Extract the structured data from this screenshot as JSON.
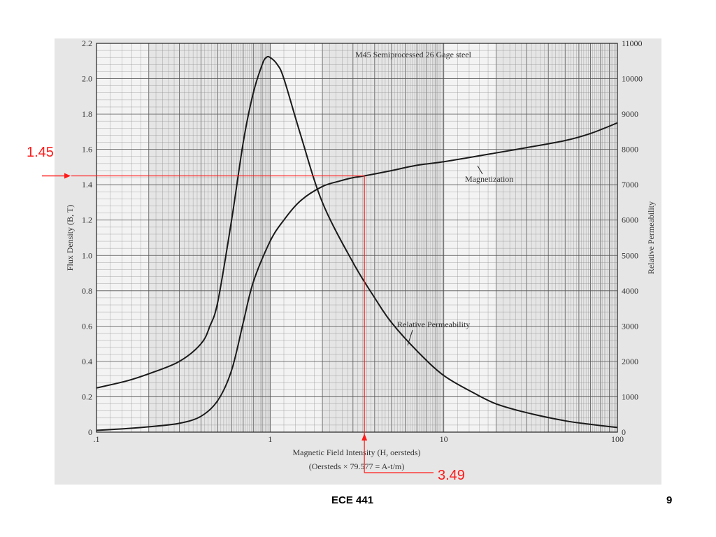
{
  "chart_data": {
    "type": "line",
    "title": "M45 Semiprocessed 26 Gage steel",
    "xlabel": "Magnetic Field Intensity (H, oersteds)",
    "xlabel2": "(Oersteds × 79.577 = A-t/m)",
    "ylabel": "Flux Density (B, T)",
    "y2label": "Relative Permeability",
    "xscale": "log",
    "xlim": [
      0.1,
      100
    ],
    "ylim": [
      0,
      2.2
    ],
    "y2lim": [
      0,
      11000
    ],
    "grid": true,
    "x_ticks": [
      ".1",
      "1",
      "10",
      "100"
    ],
    "y_ticks": [
      "0",
      "0.2",
      "0.4",
      "0.6",
      "0.8",
      "1.0",
      "1.2",
      "1.4",
      "1.6",
      "1.8",
      "2.0",
      "2.2"
    ],
    "y2_ticks": [
      "0",
      "1000",
      "2000",
      "3000",
      "4000",
      "5000",
      "6000",
      "7000",
      "8000",
      "9000",
      "10000",
      "11000"
    ],
    "series": [
      {
        "name": "Magnetization",
        "axis": "left",
        "x": [
          0.1,
          0.15,
          0.2,
          0.3,
          0.4,
          0.5,
          0.6,
          0.7,
          0.8,
          1.0,
          1.2,
          1.5,
          2.0,
          2.5,
          3.0,
          3.49,
          5,
          7,
          10,
          20,
          30,
          50,
          70,
          100
        ],
        "y": [
          0.01,
          0.02,
          0.03,
          0.05,
          0.09,
          0.18,
          0.35,
          0.62,
          0.85,
          1.08,
          1.2,
          1.31,
          1.39,
          1.42,
          1.44,
          1.45,
          1.48,
          1.51,
          1.53,
          1.58,
          1.61,
          1.65,
          1.69,
          1.75
        ]
      },
      {
        "name": "Relative Permeability",
        "axis": "right",
        "x": [
          0.1,
          0.15,
          0.2,
          0.3,
          0.4,
          0.45,
          0.5,
          0.6,
          0.7,
          0.8,
          0.9,
          0.95,
          1.0,
          1.1,
          1.2,
          1.5,
          2.0,
          3.0,
          4.0,
          5.0,
          7.0,
          10,
          15,
          20,
          30,
          50,
          70,
          100
        ],
        "y": [
          1250,
          1450,
          1650,
          2000,
          2500,
          3000,
          3700,
          6000,
          8200,
          9600,
          10400,
          10600,
          10600,
          10400,
          10000,
          8400,
          6500,
          4800,
          3800,
          3100,
          2300,
          1600,
          1100,
          800,
          550,
          320,
          220,
          130
        ]
      }
    ],
    "annotations": [
      {
        "text": "1.45",
        "color": "#ff1a1a",
        "axis": "y",
        "value": 1.45
      },
      {
        "text": "3.49",
        "color": "#ff1a1a",
        "axis": "x",
        "value": 3.49
      }
    ],
    "curve_labels": [
      "Magnetization",
      "Relative Permeability"
    ]
  },
  "footer": {
    "course": "ECE 441",
    "page_number": "9"
  }
}
